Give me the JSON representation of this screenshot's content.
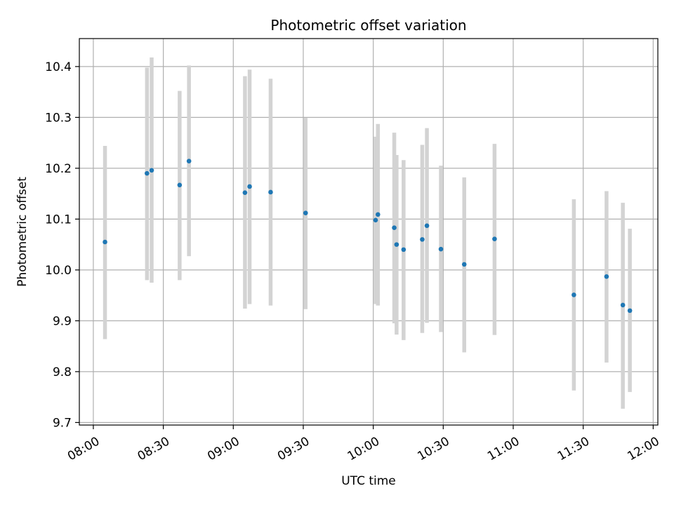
{
  "chart_data": {
    "type": "scatter",
    "title": "Photometric offset variation",
    "xlabel": "UTC time",
    "ylabel": "Photometric offset",
    "x_tick_labels": [
      "08:00",
      "08:30",
      "09:00",
      "09:30",
      "10:00",
      "10:30",
      "11:00",
      "11:30",
      "12:00"
    ],
    "y_tick_labels": [
      "9.7",
      "9.8",
      "9.9",
      "10.0",
      "10.1",
      "10.2",
      "10.3",
      "10.4"
    ],
    "ylim": [
      9.695,
      10.455
    ],
    "xlim_minutes_from_0800": [
      -6,
      242
    ],
    "grid": true,
    "point_color": "#1f77b4",
    "errorbar_color": "#d3d3d3",
    "points": [
      {
        "t": "08:05",
        "y": 10.055,
        "lo": 9.864,
        "hi": 10.244
      },
      {
        "t": "08:23",
        "y": 10.19,
        "lo": 9.98,
        "hi": 10.398
      },
      {
        "t": "08:25",
        "y": 10.196,
        "lo": 9.975,
        "hi": 10.418
      },
      {
        "t": "08:37",
        "y": 10.167,
        "lo": 9.98,
        "hi": 10.352
      },
      {
        "t": "08:41",
        "y": 10.214,
        "lo": 10.027,
        "hi": 10.402
      },
      {
        "t": "09:05",
        "y": 10.152,
        "lo": 9.924,
        "hi": 10.381
      },
      {
        "t": "09:07",
        "y": 10.164,
        "lo": 9.933,
        "hi": 10.394
      },
      {
        "t": "09:16",
        "y": 10.153,
        "lo": 9.93,
        "hi": 10.376
      },
      {
        "t": "09:31",
        "y": 10.112,
        "lo": 9.923,
        "hi": 10.299
      },
      {
        "t": "10:01",
        "y": 10.098,
        "lo": 9.933,
        "hi": 10.262
      },
      {
        "t": "10:02",
        "y": 10.109,
        "lo": 9.93,
        "hi": 10.287
      },
      {
        "t": "10:09",
        "y": 10.083,
        "lo": 9.895,
        "hi": 10.27
      },
      {
        "t": "10:10",
        "y": 10.05,
        "lo": 9.873,
        "hi": 10.226
      },
      {
        "t": "10:13",
        "y": 10.04,
        "lo": 9.862,
        "hi": 10.216
      },
      {
        "t": "10:21",
        "y": 10.06,
        "lo": 9.876,
        "hi": 10.246
      },
      {
        "t": "10:23",
        "y": 10.087,
        "lo": 9.896,
        "hi": 10.279
      },
      {
        "t": "10:29",
        "y": 10.041,
        "lo": 9.878,
        "hi": 10.205
      },
      {
        "t": "10:39",
        "y": 10.011,
        "lo": 9.838,
        "hi": 10.182
      },
      {
        "t": "10:52",
        "y": 10.061,
        "lo": 9.872,
        "hi": 10.248
      },
      {
        "t": "11:26",
        "y": 9.951,
        "lo": 9.763,
        "hi": 10.139
      },
      {
        "t": "11:40",
        "y": 9.987,
        "lo": 9.818,
        "hi": 10.155
      },
      {
        "t": "11:47",
        "y": 9.931,
        "lo": 9.727,
        "hi": 10.132
      },
      {
        "t": "11:50",
        "y": 9.92,
        "lo": 9.76,
        "hi": 10.081
      }
    ]
  }
}
